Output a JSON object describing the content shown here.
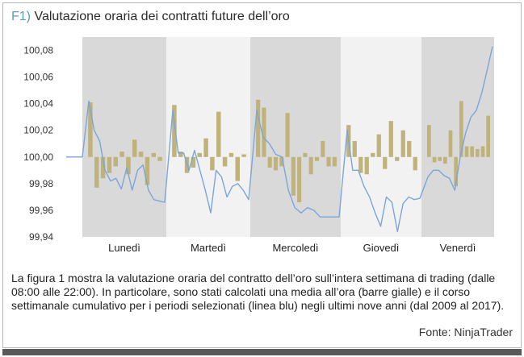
{
  "figure": {
    "tag": "F1)",
    "title": "Valutazione oraria dei contratti future dell’oro",
    "caption": "La figura 1 mostra la valutazione oraria del contratto dell’oro sull’intera settimana di trading (dalle 08:00 alle 22:00). In particolare, sono stati calcolati una media all’ora (barre gialle) e il corso settimanale cumulativo per i periodi selezionati (linea blu) negli ultimi nove anni (dal 2009 al 2017).",
    "source": "Fonte: NinjaTrader"
  },
  "chart_data": {
    "type": "bar",
    "title": "Valutazione oraria dei contratti future dell’oro",
    "ylim": [
      99.94,
      100.09
    ],
    "yticks": [
      "100,08",
      "100,06",
      "100,04",
      "100,02",
      "100,00",
      "99,98",
      "99,96",
      "99,94"
    ],
    "ytick_values": [
      100.08,
      100.06,
      100.04,
      100.02,
      100.0,
      99.98,
      99.96,
      99.94
    ],
    "baseline": 100.0,
    "grid": false,
    "colors": {
      "bars": "#bfb27a",
      "line": "#7aa6d8",
      "band_dark": "#d9d9d9",
      "band_light": "#f2f2f2"
    },
    "days": [
      {
        "label": "Lunedì",
        "shaded": true,
        "bars": [
          100.041,
          99.977,
          99.984,
          99.988,
          99.993,
          100.004,
          99.987,
          100.013,
          100.004,
          99.979,
          100.003,
          99.997
        ]
      },
      {
        "label": "Martedì",
        "shaded": false,
        "bars": [
          100.039,
          100.004,
          99.988,
          99.992,
          100.003,
          100.014,
          99.99,
          100.034,
          99.993,
          100.003,
          99.982,
          100.002
        ]
      },
      {
        "label": "Mercoledì",
        "shaded": true,
        "bars": [
          100.043,
          100.037,
          99.992,
          99.99,
          99.993,
          100.033,
          99.971,
          99.966,
          100.003,
          99.987,
          99.997,
          100.012,
          99.993,
          99.993
        ]
      },
      {
        "label": "Giovedì",
        "shaded": false,
        "bars": [
          100.024,
          100.012,
          99.988,
          99.987,
          100.003,
          100.017,
          99.991,
          100.027,
          99.997,
          100.02,
          100.012,
          99.99
        ]
      },
      {
        "label": "Venerdì",
        "shaded": true,
        "bars": [
          100.024,
          99.996,
          99.997,
          99.995,
          100.02,
          99.978,
          100.042,
          100.008,
          100.008,
          100.006,
          100.008,
          100.031
        ]
      }
    ],
    "line": {
      "flat_start": [
        100.0,
        100.0
      ],
      "days": [
        [
          100.042,
          100.02,
          100.012,
          99.99,
          99.982,
          99.984,
          99.976,
          99.992,
          99.975,
          99.99,
          99.994,
          99.975,
          99.968,
          99.967,
          99.966
        ],
        [
          100.035,
          100.003,
          100.003,
          99.99,
          100.005,
          99.99,
          99.975,
          99.958,
          99.99,
          99.985,
          99.97,
          99.978,
          99.98,
          99.975,
          99.968
        ],
        [
          100.035,
          100.015,
          100.01,
          100.002,
          100.0,
          99.975,
          99.962,
          99.958,
          99.962,
          99.96,
          99.955,
          99.955,
          99.955,
          99.955
        ],
        [
          100.02,
          99.99,
          99.99,
          99.978,
          99.97,
          99.958,
          99.948,
          99.97,
          99.966,
          99.944,
          99.965,
          99.97,
          99.968,
          99.969
        ],
        [
          99.985,
          99.99,
          99.99,
          99.986,
          99.984,
          99.975,
          100.0,
          100.018,
          100.03,
          100.035,
          100.048,
          100.065,
          100.083
        ]
      ]
    }
  }
}
